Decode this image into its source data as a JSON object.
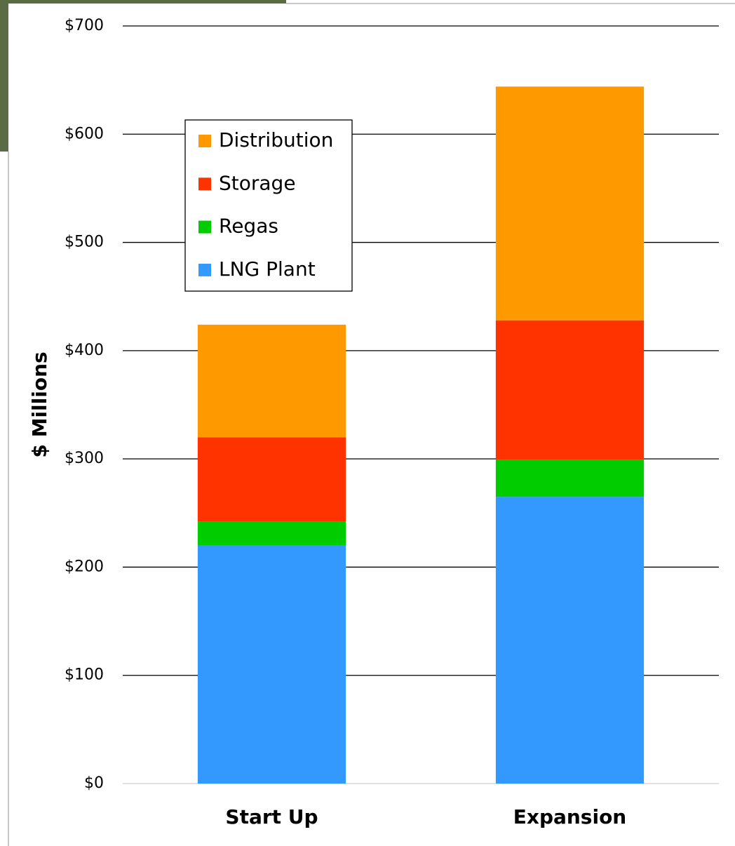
{
  "chart_data": {
    "type": "stacked_bar",
    "y_label": "$ Millions",
    "categories": [
      "Start Up",
      "Expansion"
    ],
    "series": [
      {
        "name": "LNG Plant",
        "color": "#3399ff",
        "values": [
          220,
          265
        ]
      },
      {
        "name": "Regas",
        "color": "#00cc00",
        "values": [
          22,
          34
        ]
      },
      {
        "name": "Storage",
        "color": "#ff3300",
        "values": [
          78,
          129
        ]
      },
      {
        "name": "Distribution",
        "color": "#ff9900",
        "values": [
          104,
          216
        ]
      }
    ],
    "ylim": [
      0,
      700
    ],
    "yticks": [
      {
        "value": 0,
        "label": "$0"
      },
      {
        "value": 100,
        "label": "$100"
      },
      {
        "value": 200,
        "label": "$200"
      },
      {
        "value": 300,
        "label": "$300"
      },
      {
        "value": 400,
        "label": "$400"
      },
      {
        "value": 500,
        "label": "$500"
      },
      {
        "value": 600,
        "label": "$600"
      },
      {
        "value": 700,
        "label": "$700"
      }
    ],
    "grid": true,
    "legend": "upper left"
  }
}
